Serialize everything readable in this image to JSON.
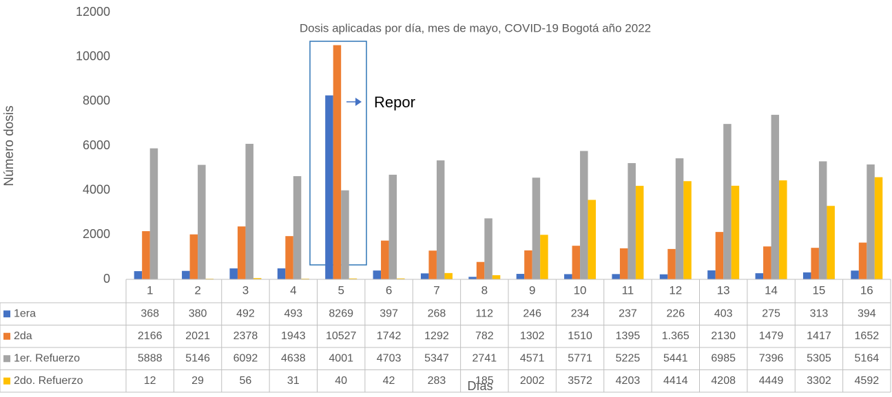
{
  "chart_data": {
    "type": "bar",
    "title": "Dosis aplicadas por día, mes de mayo, COVID-19 Bogotá año 2022",
    "y_label": "Número dosis",
    "x_label": "Días",
    "annotation": "Repor",
    "categories": [
      "1",
      "2",
      "3",
      "4",
      "5",
      "6",
      "7",
      "8",
      "9",
      "10",
      "11",
      "12",
      "13",
      "14",
      "15",
      "16"
    ],
    "series": [
      {
        "name": "1era",
        "color": "#4472c4",
        "values": [
          368,
          380,
          492,
          493,
          8269,
          397,
          268,
          112,
          246,
          234,
          237,
          226,
          403,
          275,
          313,
          394
        ]
      },
      {
        "name": "2da",
        "color": "#ed7d31",
        "values": [
          2166,
          2021,
          2378,
          1943,
          10527,
          1742,
          1292,
          782,
          1302,
          1510,
          1395,
          1365,
          2130,
          1479,
          1417,
          1652
        ],
        "value_labels": [
          "2166",
          "2021",
          "2378",
          "1943",
          "10527",
          "1742",
          "1292",
          "782",
          "1302",
          "1510",
          "1395",
          "1.365",
          "2130",
          "1479",
          "1417",
          "1652"
        ]
      },
      {
        "name": "1er. Refuerzo",
        "color": "#a5a5a5",
        "values": [
          5888,
          5146,
          6092,
          4638,
          4001,
          4703,
          5347,
          2741,
          4571,
          5771,
          5225,
          5441,
          6985,
          7396,
          5305,
          5164
        ]
      },
      {
        "name": "2do. Refuerzo",
        "color": "#ffc000",
        "values": [
          12,
          29,
          56,
          31,
          40,
          42,
          283,
          185,
          2002,
          3572,
          4203,
          4414,
          4208,
          4449,
          3302,
          4592
        ]
      }
    ],
    "ylim": [
      0,
      12000
    ],
    "yticks": [
      0,
      2000,
      4000,
      6000,
      8000,
      10000,
      12000
    ],
    "grid": false
  }
}
